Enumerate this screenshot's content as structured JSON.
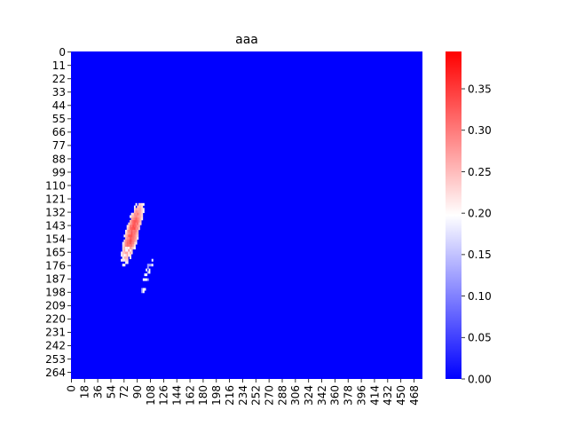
{
  "chart_data": {
    "type": "heatmap",
    "title": "aaa",
    "xlabel": "",
    "ylabel": "",
    "n_cols": 480,
    "n_rows": 270,
    "x_tick_labels": [
      "0",
      "18",
      "36",
      "54",
      "72",
      "90",
      "108",
      "126",
      "144",
      "162",
      "180",
      "198",
      "216",
      "234",
      "252",
      "270",
      "288",
      "306",
      "324",
      "342",
      "360",
      "378",
      "396",
      "414",
      "432",
      "450",
      "468"
    ],
    "y_tick_labels": [
      "0",
      "11",
      "22",
      "33",
      "44",
      "55",
      "66",
      "77",
      "88",
      "99",
      "110",
      "121",
      "132",
      "143",
      "154",
      "165",
      "176",
      "187",
      "198",
      "209",
      "220",
      "231",
      "242",
      "253",
      "264"
    ],
    "colorbar": {
      "colormap": "bwr",
      "vmin": 0.0,
      "vmax": 0.395,
      "tick_labels": [
        "0.00",
        "0.05",
        "0.10",
        "0.15",
        "0.20",
        "0.25",
        "0.30",
        "0.35"
      ],
      "tick_values": [
        0.0,
        0.05,
        0.1,
        0.15,
        0.2,
        0.25,
        0.3,
        0.35
      ]
    },
    "background_value": 0.0,
    "blob": {
      "description_values": "elongated region of values ~0.20-0.32 with peak ~0.37",
      "center_col": 83,
      "center_row": 148,
      "peak_value": 0.37,
      "tail_end_col": 112,
      "tail_end_row": 194
    },
    "colors": {
      "low": "#0000ff",
      "mid": "#ffffff",
      "high": "#ff0000"
    }
  }
}
